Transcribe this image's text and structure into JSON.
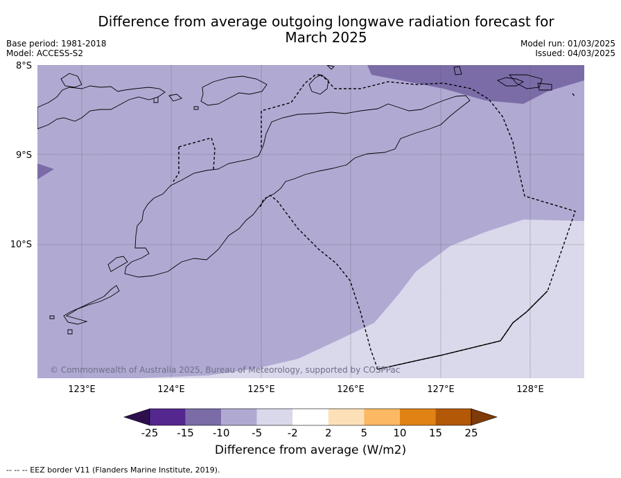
{
  "title_line1": "Difference from average outgoing longwave radiation forecast for",
  "title_line2": "March 2025",
  "meta_left": [
    "Base period: 1981-2018",
    "Model: ACCESS-S2"
  ],
  "meta_right": [
    "Model run: 01/03/2025",
    "Issued: 04/03/2025"
  ],
  "lat_ticks": [
    "8°S",
    "9°S",
    "10°S"
  ],
  "lon_ticks": [
    "123°E",
    "124°E",
    "125°E",
    "126°E",
    "127°E",
    "128°E"
  ],
  "copyright": "© Commonwealth of Australia 2025, Bureau of Meteorology, supported by COSPPac",
  "colorbar": {
    "ticks": [
      "-25",
      "-15",
      "-10",
      "-5",
      "-2",
      "2",
      "5",
      "10",
      "15",
      "25"
    ],
    "colors": [
      "#2d0f4e",
      "#54278f",
      "#7b6ca8",
      "#b0aad3",
      "#d9d9eb",
      "#ffffff",
      "#fde0b8",
      "#fdb863",
      "#e08214",
      "#b35806",
      "#7f3b08"
    ],
    "label": "Difference from average (W/m2)"
  },
  "footnote": "--  --  -- EEZ border V11 (Flanders Marine Institute, 2019)."
}
